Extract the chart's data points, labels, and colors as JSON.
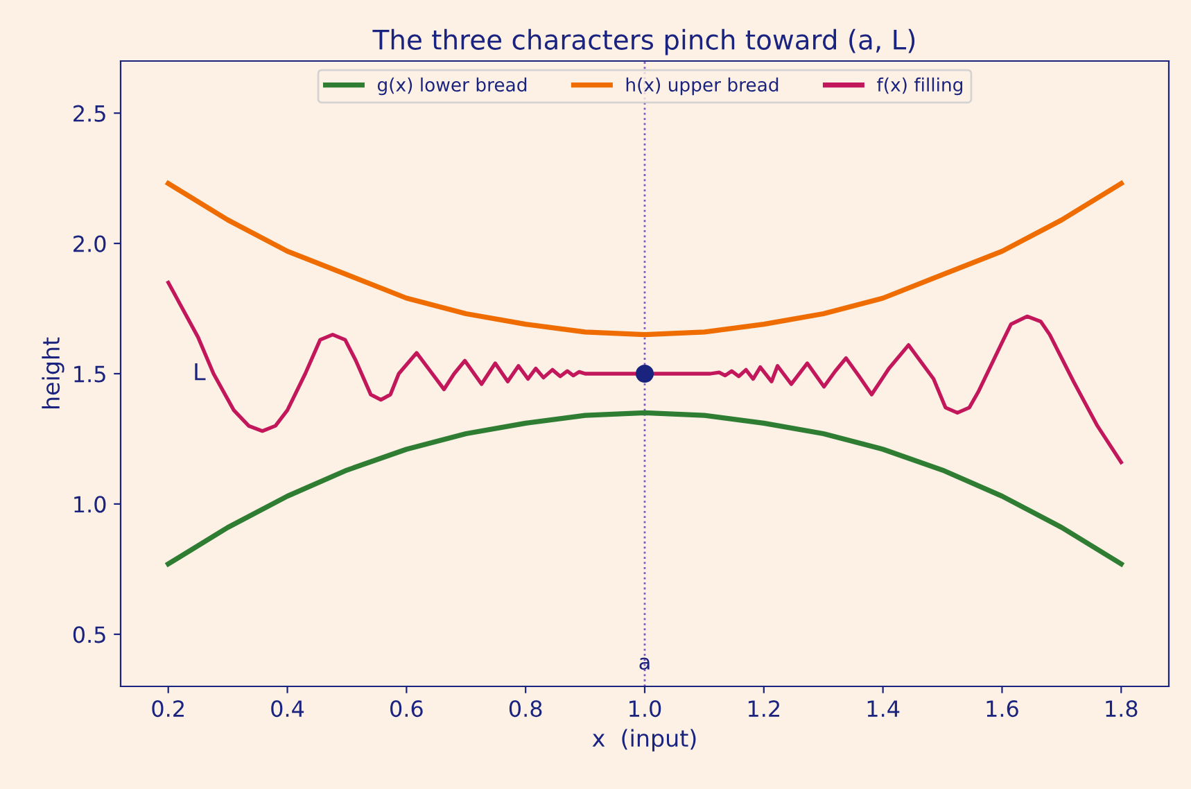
{
  "chart_data": {
    "type": "line",
    "title": "The three characters pinch toward (a, L)",
    "xlabel": "x  (input)",
    "ylabel": "height",
    "xlim": [
      0.12,
      1.88
    ],
    "xticks": [
      0.2,
      0.4,
      0.6,
      0.8,
      {
        "value": 1,
        "label": "1.0"
      },
      1.2,
      1.4,
      1.6,
      1.8
    ],
    "ylim": [
      0.3,
      2.7
    ],
    "yticks": [
      0.5,
      {
        "value": 1,
        "label": "1.0"
      },
      1.5,
      {
        "value": 2,
        "label": "2.0"
      },
      2.5
    ],
    "grid": false,
    "legend": "top",
    "marker": "none",
    "line_style": "solid",
    "series": [
      {
        "name": "g(x) lower bread",
        "color": "#2e7d32",
        "x": [
          0.2,
          0.3,
          0.4,
          0.5,
          0.6,
          0.7,
          0.8,
          0.9,
          1.0,
          1.1,
          1.2,
          1.3,
          1.4,
          1.5,
          1.6,
          1.7,
          1.8
        ],
        "values": [
          0.77,
          0.91,
          1.03,
          1.13,
          1.21,
          1.27,
          1.31,
          1.34,
          1.35,
          1.34,
          1.31,
          1.27,
          1.21,
          1.13,
          1.03,
          0.91,
          0.77
        ]
      },
      {
        "name": "h(x) upper bread",
        "color": "#ef6c00",
        "x": [
          0.2,
          0.3,
          0.4,
          0.5,
          0.6,
          0.7,
          0.8,
          0.9,
          1.0,
          1.1,
          1.2,
          1.3,
          1.4,
          1.5,
          1.6,
          1.7,
          1.8
        ],
        "values": [
          2.23,
          2.09,
          1.97,
          1.88,
          1.79,
          1.73,
          1.69,
          1.66,
          1.65,
          1.66,
          1.69,
          1.73,
          1.79,
          1.88,
          1.97,
          2.09,
          2.23
        ]
      },
      {
        "name": "f(x) filling",
        "color": "#c2185b",
        "x": [
          0.2,
          0.25,
          0.276,
          0.31,
          0.335,
          0.358,
          0.38,
          0.4,
          0.43,
          0.455,
          0.476,
          0.497,
          0.515,
          0.54,
          0.557,
          0.573,
          0.587,
          0.617,
          0.64,
          0.663,
          0.68,
          0.698,
          0.726,
          0.749,
          0.77,
          0.788,
          0.804,
          0.817,
          0.83,
          0.845,
          0.858,
          0.87,
          0.88,
          0.89,
          0.9,
          1.0,
          1.11,
          1.125,
          1.135,
          1.146,
          1.158,
          1.17,
          1.182,
          1.194,
          1.213,
          1.223,
          1.246,
          1.273,
          1.301,
          1.32,
          1.338,
          1.36,
          1.381,
          1.41,
          1.443,
          1.485,
          1.505,
          1.525,
          1.545,
          1.56,
          1.6,
          1.615,
          1.642,
          1.665,
          1.68,
          1.72,
          1.76,
          1.8
        ],
        "values": [
          1.85,
          1.64,
          1.5,
          1.36,
          1.3,
          1.28,
          1.3,
          1.36,
          1.5,
          1.63,
          1.65,
          1.63,
          1.55,
          1.42,
          1.4,
          1.42,
          1.5,
          1.58,
          1.51,
          1.44,
          1.5,
          1.55,
          1.46,
          1.54,
          1.47,
          1.53,
          1.48,
          1.52,
          1.485,
          1.515,
          1.49,
          1.51,
          1.493,
          1.507,
          1.5,
          1.5,
          1.5,
          1.505,
          1.493,
          1.51,
          1.49,
          1.515,
          1.48,
          1.525,
          1.47,
          1.53,
          1.46,
          1.54,
          1.45,
          1.51,
          1.56,
          1.49,
          1.42,
          1.52,
          1.61,
          1.48,
          1.37,
          1.35,
          1.37,
          1.43,
          1.62,
          1.69,
          1.72,
          1.7,
          1.65,
          1.47,
          1.3,
          1.16
        ]
      },
      {
        "type": "scatter",
        "color": "#1a237e",
        "marker": "circle",
        "x": [
          1.0
        ],
        "values": [
          1.5
        ]
      }
    ],
    "ref_lines": [
      {
        "axis": "x",
        "value": 1.0,
        "label": "a",
        "color": "#7e57c2",
        "line_style": "dotted"
      }
    ],
    "annotations": [
      "L"
    ]
  }
}
